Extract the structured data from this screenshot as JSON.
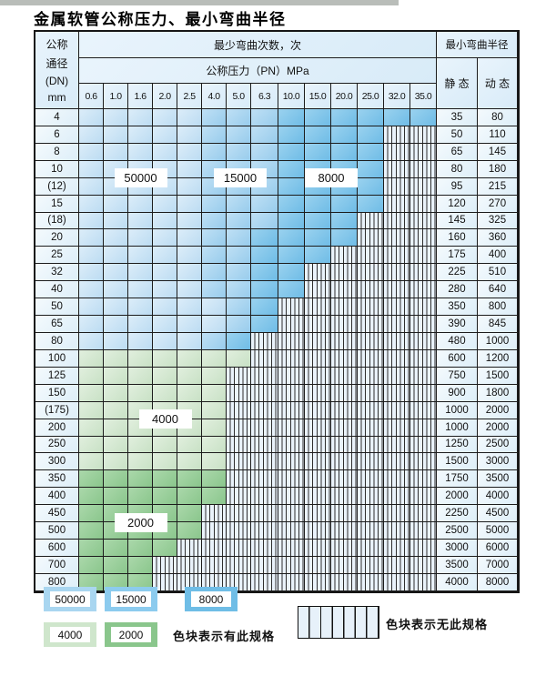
{
  "title": "金属软管公称压力、最小弯曲半径",
  "table": {
    "dn_header_lines": [
      "公称",
      "通径",
      "(DN)",
      "mm"
    ],
    "bend_cycles_header": "最少弯曲次数，次",
    "pressure_header": "公称压力（PN）MPa",
    "pressure_columns": [
      "0.6",
      "1.0",
      "1.6",
      "2.0",
      "2.5",
      "4.0",
      "5.0",
      "6.3",
      "10.0",
      "15.0",
      "20.0",
      "25.0",
      "32.0",
      "35.0"
    ],
    "radius_header": "最小弯曲半径",
    "static_header": "静 态",
    "dynamic_header": "动 态",
    "zone_legend_meaning": {
      "L": "50000",
      "M": "15000",
      "D": "8000",
      "G": "4000",
      "E": "2000",
      "H": "no-spec"
    },
    "rows": [
      {
        "dn": "4",
        "zones": "LLLLLMMMDDDDDD",
        "static": "35",
        "dynamic": "80"
      },
      {
        "dn": "6",
        "zones": "LLLLLMMMDDDDHH",
        "static": "50",
        "dynamic": "110"
      },
      {
        "dn": "8",
        "zones": "LLLLLMMMDDDDHH",
        "static": "65",
        "dynamic": "145"
      },
      {
        "dn": "10",
        "zones": "LLLLLMMMDDDDHH",
        "static": "80",
        "dynamic": "180"
      },
      {
        "dn": "(12)",
        "zones": "LLLLLMMMDDDDHH",
        "static": "95",
        "dynamic": "215"
      },
      {
        "dn": "15",
        "zones": "LLLLLMMMDDDDHH",
        "static": "120",
        "dynamic": "270"
      },
      {
        "dn": "(18)",
        "zones": "LLLLLMMMDDDHHH",
        "static": "145",
        "dynamic": "325"
      },
      {
        "dn": "20",
        "zones": "LLLLLMMDDDDHHH",
        "static": "160",
        "dynamic": "360"
      },
      {
        "dn": "25",
        "zones": "LLLLLMMDDDHHHH",
        "static": "175",
        "dynamic": "400"
      },
      {
        "dn": "32",
        "zones": "LLLLLMMDDHHHHH",
        "static": "225",
        "dynamic": "510"
      },
      {
        "dn": "40",
        "zones": "LLLLLMMDDHHHHH",
        "static": "280",
        "dynamic": "640"
      },
      {
        "dn": "50",
        "zones": "LLLLLLMDHHHHHH",
        "static": "350",
        "dynamic": "800"
      },
      {
        "dn": "65",
        "zones": "LLLLLLMDHHHHHH",
        "static": "390",
        "dynamic": "845"
      },
      {
        "dn": "80",
        "zones": "LLLLLMDHHHHHHH",
        "static": "480",
        "dynamic": "1000"
      },
      {
        "dn": "100",
        "zones": "GGGGGGGHHHHHHH",
        "static": "600",
        "dynamic": "1200"
      },
      {
        "dn": "125",
        "zones": "GGGGGGHHHHHHHH",
        "static": "750",
        "dynamic": "1500"
      },
      {
        "dn": "150",
        "zones": "GGGGGGHHHHHHHH",
        "static": "900",
        "dynamic": "1800"
      },
      {
        "dn": "(175)",
        "zones": "GGGGGGHHHHHHHH",
        "static": "1000",
        "dynamic": "2000"
      },
      {
        "dn": "200",
        "zones": "GGGGGGHHHHHHHH",
        "static": "1000",
        "dynamic": "2000"
      },
      {
        "dn": "250",
        "zones": "GGGGGGHHHHHHHH",
        "static": "1250",
        "dynamic": "2500"
      },
      {
        "dn": "300",
        "zones": "GGGGGGHHHHHHHH",
        "static": "1500",
        "dynamic": "3000"
      },
      {
        "dn": "350",
        "zones": "EEEEEEHHHHHHHH",
        "static": "1750",
        "dynamic": "3500"
      },
      {
        "dn": "400",
        "zones": "EEEEEEHHHHHHHH",
        "static": "2000",
        "dynamic": "4000"
      },
      {
        "dn": "450",
        "zones": "EEEEEHHHHHHHHH",
        "static": "2250",
        "dynamic": "4500"
      },
      {
        "dn": "500",
        "zones": "EEEEEHHHHHHHHH",
        "static": "2500",
        "dynamic": "5000"
      },
      {
        "dn": "600",
        "zones": "EEEEHHHHHHHHHH",
        "static": "3000",
        "dynamic": "6000"
      },
      {
        "dn": "700",
        "zones": "EEEHHHHHHHHHHH",
        "static": "3500",
        "dynamic": "7000"
      },
      {
        "dn": "800",
        "zones": "EEEHHHHHHHHHHH",
        "static": "4000",
        "dynamic": "8000"
      }
    ],
    "overlay_labels": [
      {
        "label": "50000",
        "cols": [
          1,
          3
        ],
        "rows": [
          3,
          4
        ]
      },
      {
        "label": "15000",
        "cols": [
          5,
          7
        ],
        "rows": [
          3,
          4
        ]
      },
      {
        "label": "8000",
        "cols": [
          9,
          10
        ],
        "rows": [
          3,
          4
        ]
      },
      {
        "label": "4000",
        "cols": [
          2,
          4
        ],
        "rows": [
          17,
          18
        ]
      },
      {
        "label": "2000",
        "cols": [
          1,
          3
        ],
        "rows": [
          23,
          24
        ]
      }
    ]
  },
  "legend": {
    "items": [
      {
        "label": "50000",
        "color": "#a9d6f0"
      },
      {
        "label": "15000",
        "color": "#8ccbee"
      },
      {
        "label": "8000",
        "color": "#6fbde6"
      },
      {
        "label": "4000",
        "color": "#cfe6cc"
      },
      {
        "label": "2000",
        "color": "#8ac68c"
      }
    ],
    "has_spec_text": "色块表示有此规格",
    "no_spec_text": "色块表示无此规格"
  },
  "colors": {
    "blue_50000": "#bcdcf2",
    "blue_15000": "#98ccec",
    "blue_8000": "#6fbce6",
    "green_4000": "#c8e1c5",
    "green_2000": "#8ac68c",
    "hatch_bg": "#eaf3fb",
    "grid_line": "#1c1c1c"
  }
}
